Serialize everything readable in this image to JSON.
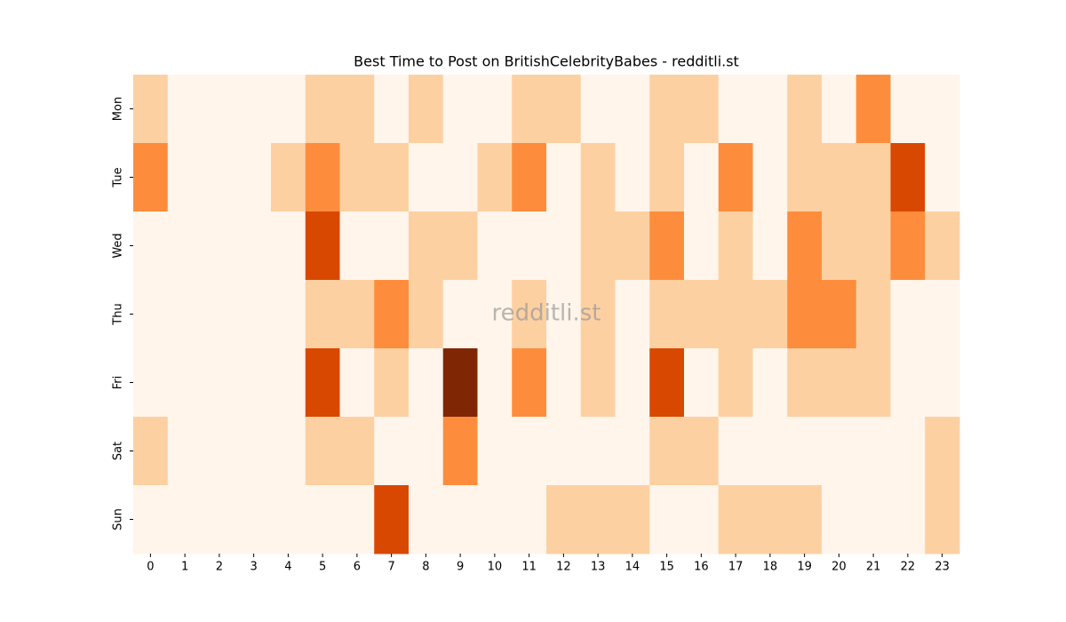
{
  "chart_data": {
    "type": "heatmap",
    "title": "Best Time to Post on BritishCelebrityBabes - redditli.st",
    "watermark": "redditli.st",
    "x_categories": [
      "0",
      "1",
      "2",
      "3",
      "4",
      "5",
      "6",
      "7",
      "8",
      "9",
      "10",
      "11",
      "12",
      "13",
      "14",
      "15",
      "16",
      "17",
      "18",
      "19",
      "20",
      "21",
      "22",
      "23"
    ],
    "y_categories": [
      "Mon",
      "Tue",
      "Wed",
      "Thu",
      "Fri",
      "Sat",
      "Sun"
    ],
    "colors": [
      "#fff5eb",
      "#fdd0a2",
      "#fd8d3c",
      "#d94801",
      "#7f2704"
    ],
    "values": [
      [
        1,
        0,
        0,
        0,
        0,
        1,
        1,
        0,
        1,
        0,
        0,
        1,
        1,
        0,
        0,
        1,
        1,
        0,
        0,
        1,
        0,
        2,
        0,
        0
      ],
      [
        2,
        0,
        0,
        0,
        1,
        2,
        1,
        1,
        0,
        0,
        1,
        2,
        0,
        1,
        0,
        1,
        0,
        2,
        0,
        1,
        1,
        1,
        3,
        0
      ],
      [
        0,
        0,
        0,
        0,
        0,
        3,
        0,
        0,
        1,
        1,
        0,
        0,
        0,
        1,
        1,
        2,
        0,
        1,
        0,
        2,
        1,
        1,
        2,
        1
      ],
      [
        0,
        0,
        0,
        0,
        0,
        1,
        1,
        2,
        1,
        0,
        0,
        1,
        0,
        1,
        0,
        1,
        1,
        1,
        1,
        2,
        2,
        1,
        0,
        0
      ],
      [
        0,
        0,
        0,
        0,
        0,
        3,
        0,
        1,
        0,
        4,
        0,
        2,
        0,
        1,
        0,
        3,
        0,
        1,
        0,
        1,
        1,
        1,
        0,
        0
      ],
      [
        1,
        0,
        0,
        0,
        0,
        1,
        1,
        0,
        0,
        2,
        0,
        0,
        0,
        0,
        0,
        1,
        1,
        0,
        0,
        0,
        0,
        0,
        0,
        1
      ],
      [
        0,
        0,
        0,
        0,
        0,
        0,
        0,
        3,
        0,
        0,
        0,
        0,
        1,
        1,
        1,
        0,
        0,
        1,
        1,
        1,
        0,
        0,
        0,
        1
      ]
    ]
  }
}
